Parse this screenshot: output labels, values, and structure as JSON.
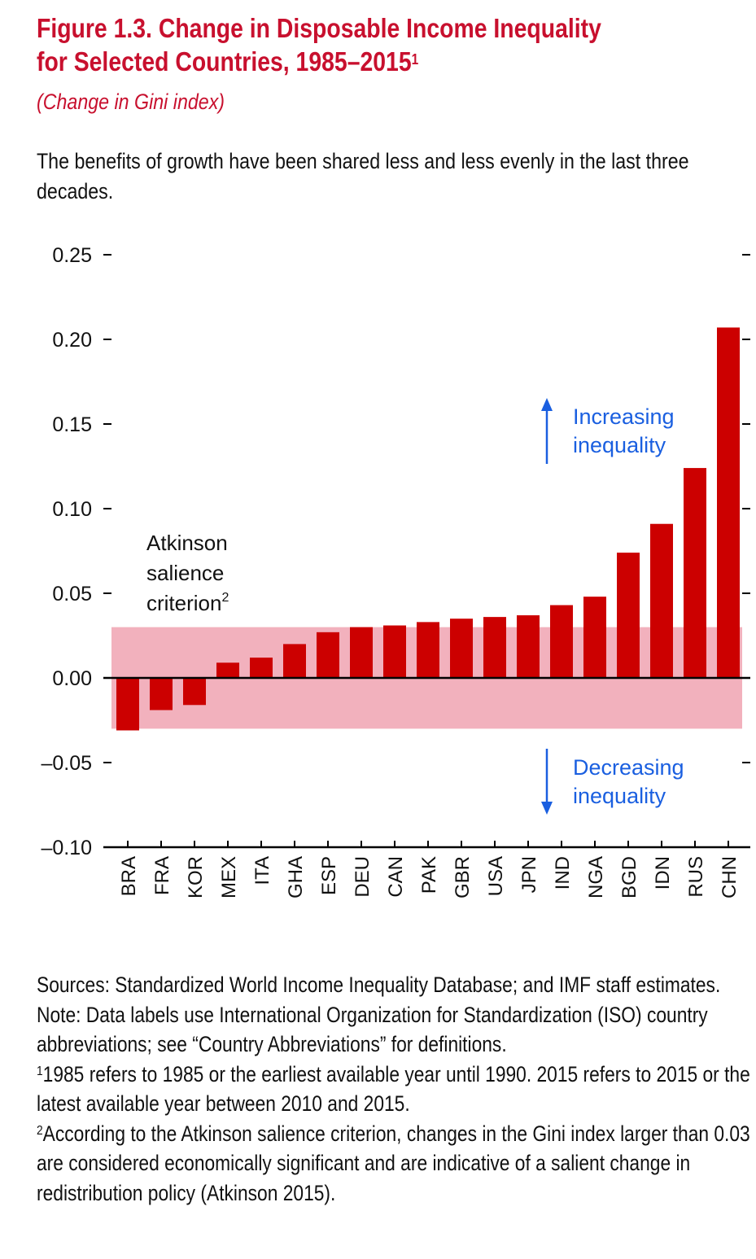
{
  "header": {
    "title_line1": "Figure 1.3. Change in Disposable Income Inequality",
    "title_line2": "for Selected Countries, 1985–2015",
    "title_footnote_mark": "1",
    "subtitle": "(Change in Gini index)",
    "lede": "The benefits of growth have been shared less and less evenly in the last three decades."
  },
  "chart_data": {
    "type": "bar",
    "title": "Change in Disposable Income Inequality for Selected Countries, 1985–2015",
    "xlabel": "",
    "ylabel": "Change in Gini index",
    "ylim": [
      -0.1,
      0.25
    ],
    "yticks": [
      0.25,
      0.2,
      0.15,
      0.1,
      0.05,
      0.0,
      -0.05,
      -0.1
    ],
    "ytick_labels": [
      "0.25",
      "0.20",
      "0.15",
      "0.10",
      "0.05",
      "0.00",
      "–0.05",
      "–0.10"
    ],
    "grid": false,
    "legend": "none",
    "categories": [
      "BRA",
      "FRA",
      "KOR",
      "MEX",
      "ITA",
      "GHA",
      "ESP",
      "DEU",
      "CAN",
      "PAK",
      "GBR",
      "USA",
      "JPN",
      "IND",
      "NGA",
      "BGD",
      "IDN",
      "RUS",
      "CHN"
    ],
    "values": [
      -0.031,
      -0.019,
      -0.016,
      0.009,
      0.012,
      0.02,
      0.027,
      0.03,
      0.031,
      0.033,
      0.035,
      0.036,
      0.037,
      0.043,
      0.048,
      0.074,
      0.091,
      0.124,
      0.207
    ],
    "band": {
      "label": "Atkinson salience criterion",
      "footnote_mark": "2",
      "lower": -0.03,
      "upper": 0.03
    },
    "annotations": [
      {
        "text_line1": "Increasing",
        "text_line2": "inequality",
        "direction": "up"
      },
      {
        "text_line1": "Decreasing",
        "text_line2": "inequality",
        "direction": "down"
      }
    ],
    "colors": {
      "bar": "#cc0000",
      "band": "#f2b1bd",
      "annotation": "#1a5fe0",
      "title": "#c8102e"
    }
  },
  "notes": {
    "sources": "Sources: Standardized World Income Inequality Database; and IMF staff estimates.",
    "note": "Note: Data labels use International Organization for Standardization (ISO) country abbreviations; see “Country Abbreviations” for definitions.",
    "fn1_mark": "1",
    "fn1": "1985 refers to 1985 or the earliest available year until 1990. 2015 refers to 2015 or the latest available year between 2010 and 2015.",
    "fn2_mark": "2",
    "fn2": "According to the Atkinson salience criterion, changes in the Gini index larger than 0.03 are considered economically significant and are indicative of a salient change in redistribution policy (Atkinson 2015)."
  }
}
